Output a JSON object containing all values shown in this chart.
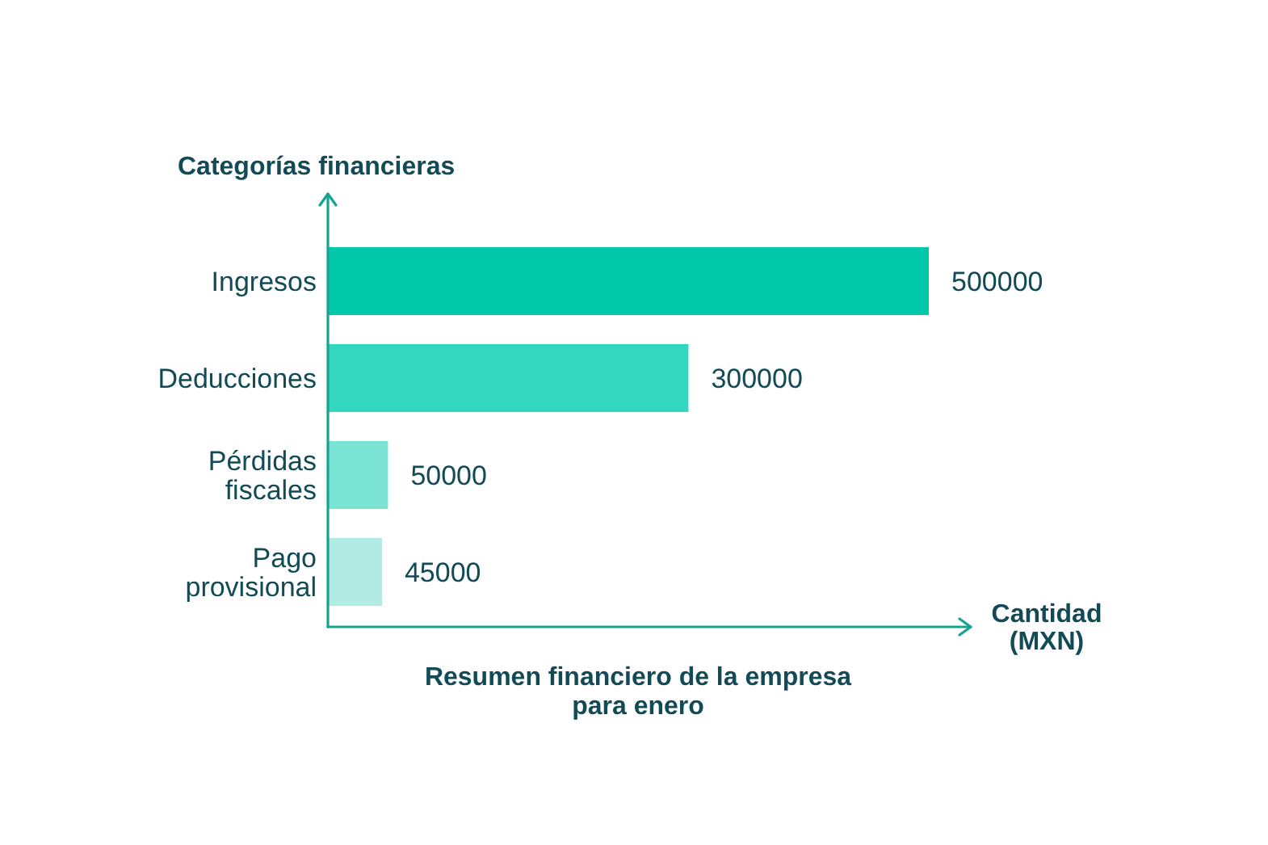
{
  "chart_data": {
    "type": "bar",
    "orientation": "horizontal",
    "title": "Resumen financiero de la empresa para enero",
    "xlabel": "Cantidad (MXN)",
    "ylabel": "Categorías financieras",
    "categories": [
      "Ingresos",
      "Deducciones",
      "Pérdidas fiscales",
      "Pago provisional"
    ],
    "values": [
      500000,
      300000,
      50000,
      45000
    ],
    "colors": [
      "#00c8a8",
      "#33d7c0",
      "#7be3d4",
      "#b2ebe4"
    ],
    "data_labels": true
  }
}
